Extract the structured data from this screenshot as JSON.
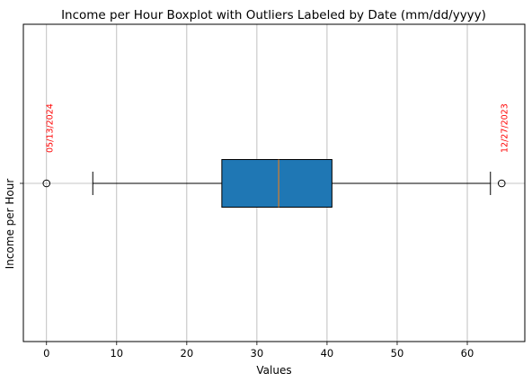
{
  "chart_data": {
    "type": "boxplot",
    "orientation": "horizontal",
    "title": "Income per Hour Boxplot with Outliers Labeled by Date (mm/dd/yyyy)",
    "xlabel": "Values",
    "ylabel": "Income per Hour",
    "xlim": [
      -3.3,
      68.2
    ],
    "xticks": [
      0,
      10,
      20,
      30,
      40,
      50,
      60
    ],
    "grid": true,
    "box": {
      "whisker_low": 6.6,
      "q1": 25.0,
      "median": 33.1,
      "q3": 40.7,
      "whisker_high": 63.3
    },
    "outliers": [
      {
        "value": 0.0,
        "label": "05/13/2024"
      },
      {
        "value": 64.9,
        "label": "12/27/2023"
      }
    ],
    "colors": {
      "box_fill": "#1f77b4",
      "median_line": "#ff7f0e",
      "outlier_label": "#ff0000",
      "grid": "#b0b0b0"
    }
  }
}
